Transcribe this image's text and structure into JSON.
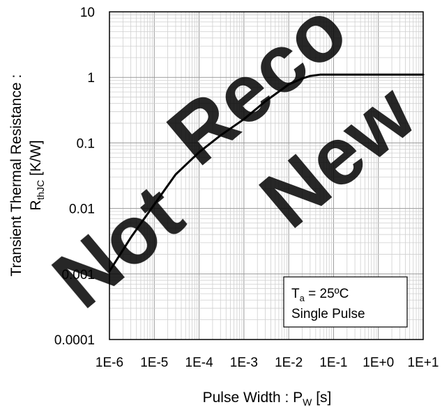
{
  "chart_data": {
    "type": "line",
    "title": "",
    "xlabel": "Pulse Width : P",
    "xlabel_sub": "W",
    "xlabel_unit": " [s]",
    "ylabel_line1": "Transient Thermal Resistance :",
    "ylabel_line2_main": "R",
    "ylabel_line2_sub": "thJC",
    "ylabel_line2_unit": " [K/W]",
    "x_scale": "log",
    "y_scale": "log",
    "xlim": [
      1e-06,
      10
    ],
    "ylim": [
      0.0001,
      10
    ],
    "x_tick_labels": [
      "1E-6",
      "1E-5",
      "1E-4",
      "1E-3",
      "1E-2",
      "1E-1",
      "1E+0",
      "1E+1"
    ],
    "y_tick_labels": [
      "0.0001",
      "0.001",
      "0.01",
      "0.1",
      "1",
      "10"
    ],
    "grid": true,
    "annotation": {
      "line1_main": "T",
      "line1_sub": "a",
      "line1_rest": " = 25ºC",
      "line2": "Single Pulse",
      "placement": "lower-right"
    },
    "watermark": [
      "Not",
      "Reco",
      "New"
    ],
    "series": [
      {
        "color": "#000000",
        "x": [
          1e-06,
          3e-06,
          1e-05,
          3e-05,
          0.0001,
          0.0003,
          0.001,
          0.003,
          0.01,
          0.02,
          0.03,
          0.05,
          0.1,
          0.3,
          1,
          3,
          10
        ],
        "y": [
          0.0011,
          0.0036,
          0.0115,
          0.033,
          0.072,
          0.13,
          0.23,
          0.43,
          0.78,
          0.96,
          1.05,
          1.1,
          1.1,
          1.1,
          1.1,
          1.1,
          1.1
        ]
      }
    ]
  }
}
